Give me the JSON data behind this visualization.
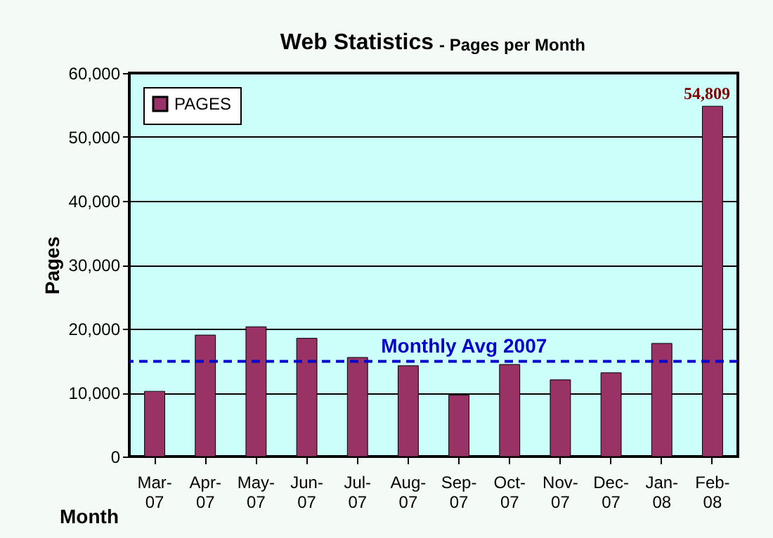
{
  "chart_data": {
    "type": "bar",
    "title": "Web Statistics",
    "subtitle": "- Pages per Month",
    "xlabel": "Month",
    "ylabel": "Pages",
    "categories": [
      "Mar-07",
      "Apr-07",
      "May-07",
      "Jun-07",
      "Jul-07",
      "Aug-07",
      "Sep-07",
      "Oct-07",
      "Nov-07",
      "Dec-07",
      "Jan-08",
      "Feb-08"
    ],
    "series": [
      {
        "name": "PAGES",
        "color": "#993366",
        "values": [
          10200,
          19000,
          20300,
          18500,
          15500,
          14200,
          9600,
          14400,
          12000,
          13100,
          17700,
          54809
        ],
        "value_labels": [
          null,
          null,
          null,
          null,
          null,
          null,
          null,
          null,
          null,
          null,
          null,
          "54,809"
        ]
      }
    ],
    "ylim": [
      0,
      60000
    ],
    "yticks": [
      {
        "value": 0,
        "label": "0"
      },
      {
        "value": 10000,
        "label": "10,000"
      },
      {
        "value": 20000,
        "label": "20,000"
      },
      {
        "value": 30000,
        "label": "30,000"
      },
      {
        "value": 40000,
        "label": "40,000"
      },
      {
        "value": 50000,
        "label": "50,000"
      },
      {
        "value": 60000,
        "label": "60,000"
      }
    ],
    "grid": "y",
    "legend": "top left",
    "ref_lines": [
      {
        "axis": "y",
        "value": 14900,
        "label": "Monthly Avg 2007",
        "color": "#0000cc",
        "line_style": "dashed"
      }
    ]
  }
}
